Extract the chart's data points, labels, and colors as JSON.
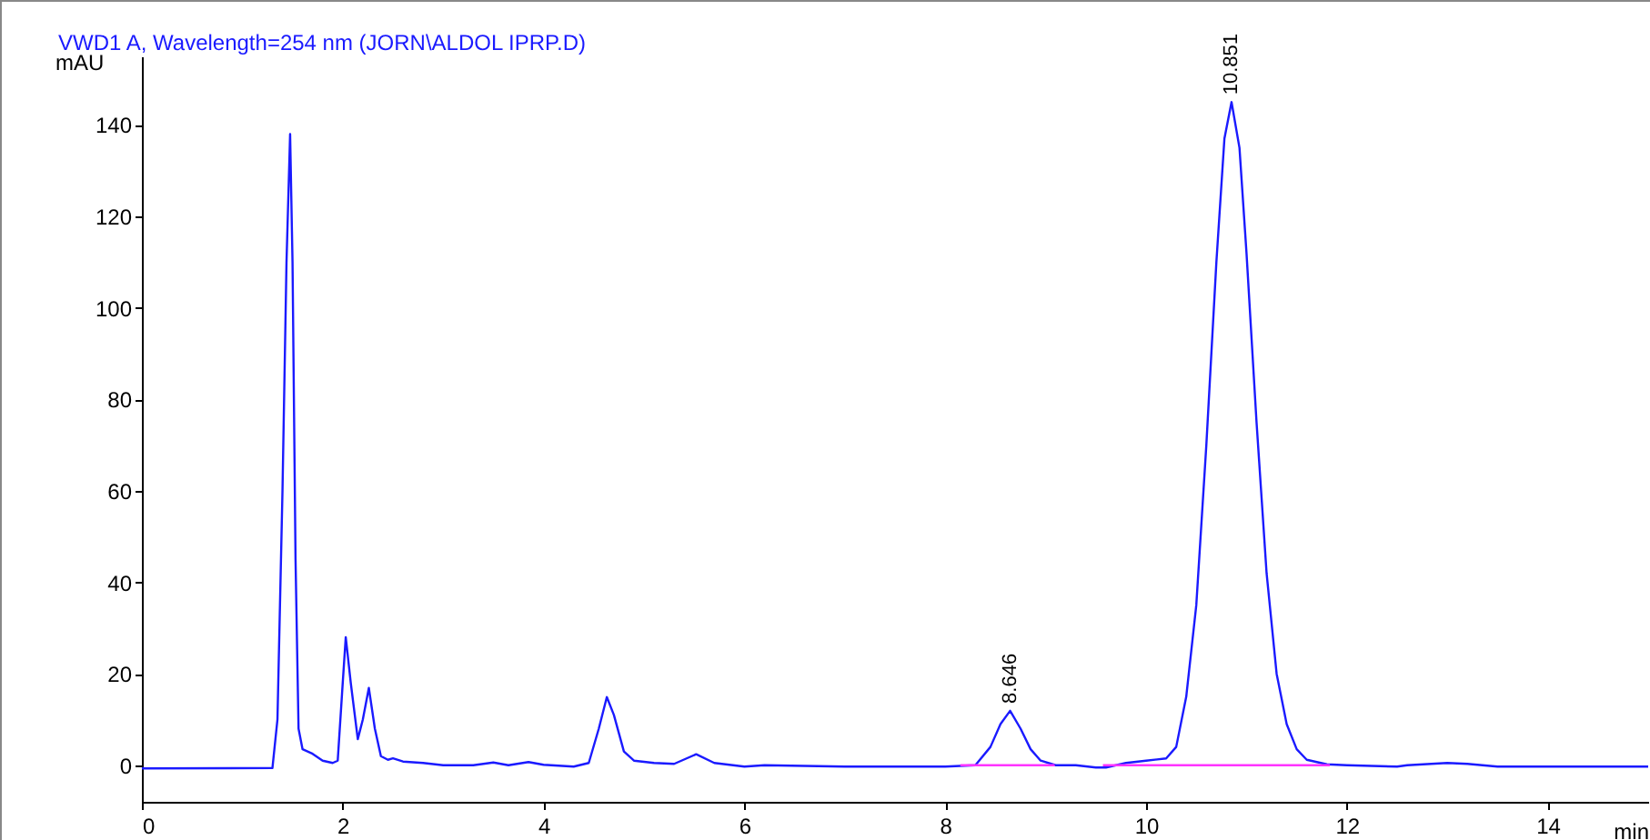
{
  "chart_data": {
    "type": "line",
    "title": "VWD1 A, Wavelength=254 nm (JORN\\ALDOL IPRP.D)",
    "xlabel": "min",
    "ylabel": "mAU",
    "xlim": [
      0,
      15
    ],
    "ylim": [
      -8,
      155
    ],
    "xticks": [
      0,
      2,
      4,
      6,
      8,
      10,
      12,
      14
    ],
    "yticks": [
      0,
      20,
      40,
      60,
      80,
      100,
      120,
      140
    ],
    "series": [
      {
        "color": "#1a1aff",
        "x": [
          0,
          1.3,
          1.35,
          1.4,
          1.44,
          1.476,
          1.5,
          1.53,
          1.56,
          1.6,
          1.7,
          1.8,
          1.9,
          1.95,
          2.0,
          2.03,
          2.08,
          2.15,
          2.2,
          2.26,
          2.32,
          2.38,
          2.45,
          2.5,
          2.6,
          2.8,
          3.0,
          3.3,
          3.5,
          3.65,
          3.85,
          4.0,
          4.3,
          4.45,
          4.55,
          4.63,
          4.7,
          4.8,
          4.9,
          5.1,
          5.3,
          5.52,
          5.7,
          6.0,
          6.2,
          7.0,
          8.0,
          8.3,
          8.45,
          8.55,
          8.646,
          8.75,
          8.85,
          8.95,
          9.1,
          9.3,
          9.5,
          9.6,
          9.8,
          10.0,
          10.2,
          10.3,
          10.4,
          10.5,
          10.6,
          10.7,
          10.78,
          10.851,
          10.93,
          11.0,
          11.1,
          11.2,
          11.3,
          11.4,
          11.5,
          11.6,
          11.8,
          12.0,
          12.5,
          12.6,
          13.0,
          13.2,
          13.5,
          14.0,
          15.0
        ],
        "values": [
          -0.7,
          -0.6,
          10,
          60,
          110,
          138,
          110,
          45,
          8,
          3.5,
          2.5,
          1,
          0.5,
          1,
          18,
          28,
          18,
          5.7,
          10,
          16.9,
          8,
          2,
          1.2,
          1.5,
          0.8,
          0.5,
          0,
          0,
          0.6,
          0,
          0.7,
          0.1,
          -0.3,
          0.5,
          8,
          14.9,
          11,
          3,
          1,
          0.5,
          0.3,
          2.4,
          0.5,
          -0.3,
          0,
          -0.3,
          -0.3,
          0,
          4,
          9,
          11.9,
          8,
          3.5,
          1,
          0,
          0,
          -0.5,
          -0.5,
          0.5,
          1,
          1.5,
          4,
          15,
          35,
          70,
          110,
          137,
          145,
          135,
          112,
          75,
          42,
          20,
          9,
          3.5,
          1.2,
          0.2,
          0,
          -0.3,
          0,
          0.5,
          0.3,
          -0.3,
          -0.3,
          -0.3
        ]
      },
      {
        "color": "#ff33ff",
        "x": [
          8.15,
          9.09
        ],
        "values": [
          0,
          0
        ]
      },
      {
        "color": "#ff33ff",
        "x": [
          9.57,
          11.83
        ],
        "values": [
          0,
          0
        ]
      }
    ],
    "annotations": [
      {
        "text": "8.646",
        "x": 8.646,
        "y": 11.9
      },
      {
        "text": "10.851",
        "x": 10.851,
        "y": 145
      }
    ],
    "grid": false
  }
}
